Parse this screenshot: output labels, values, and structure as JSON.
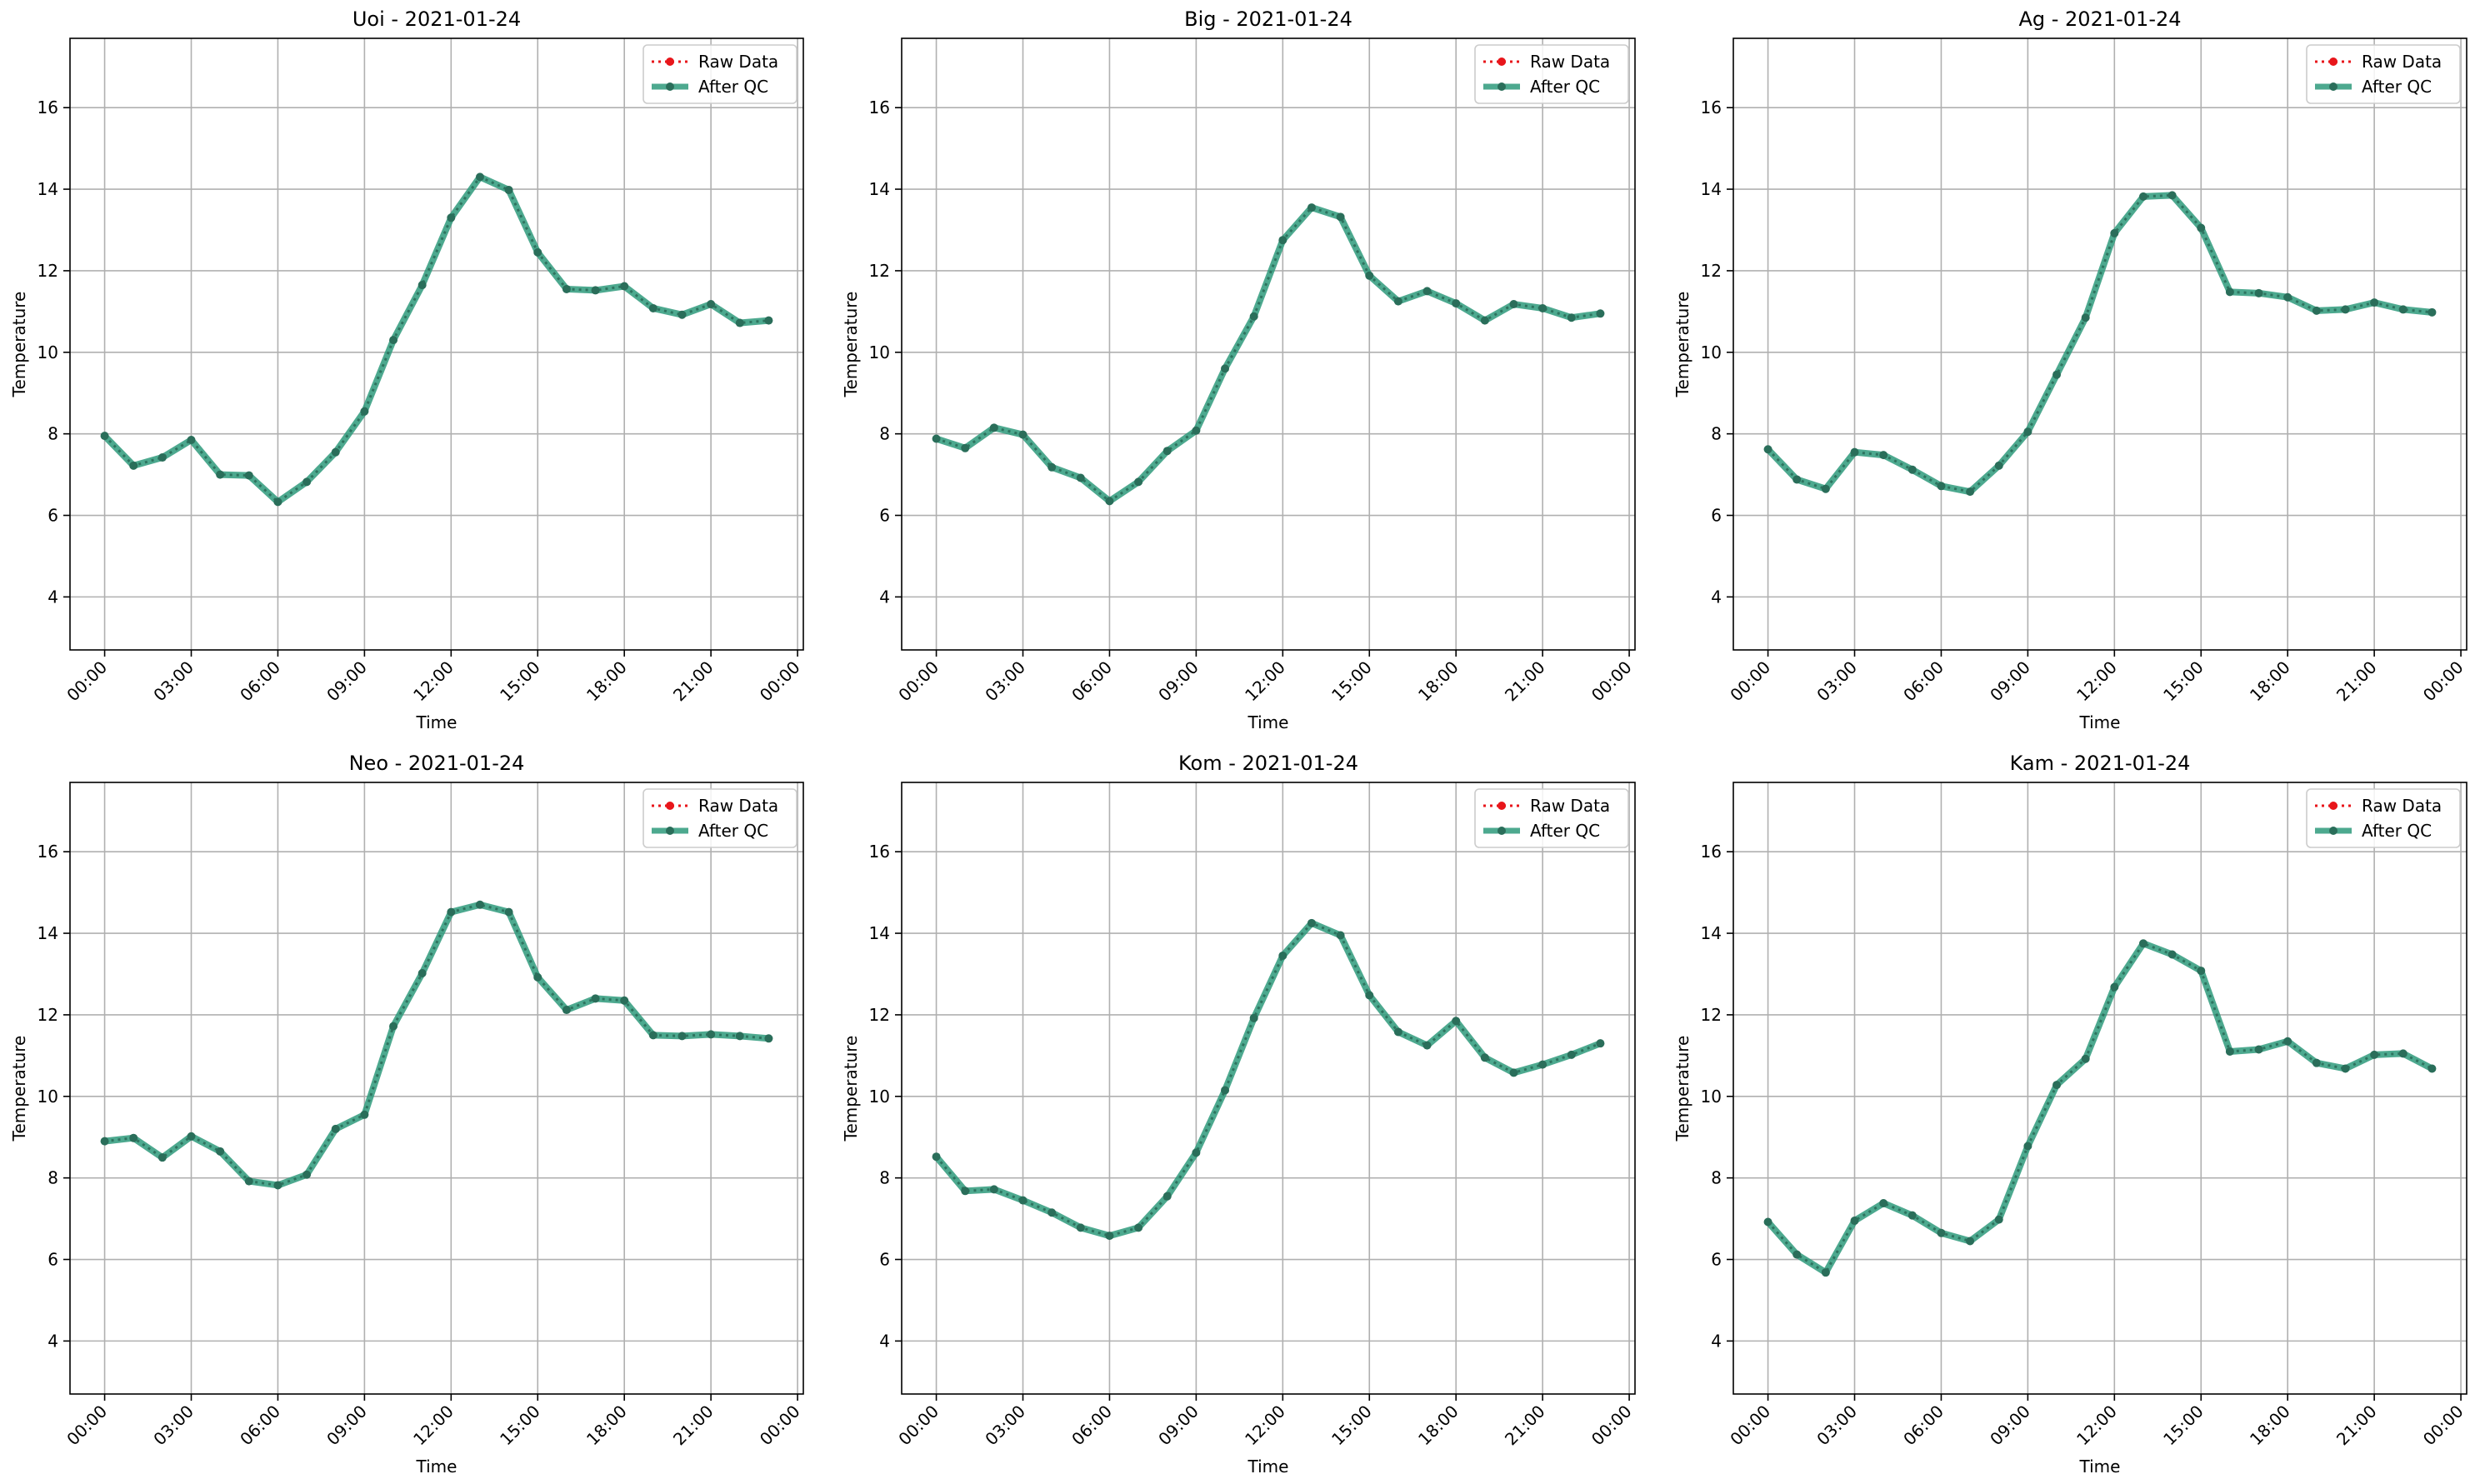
{
  "colors": {
    "raw": "#e8161b",
    "qc": "#2e9a7b",
    "qc_marker": "#2a6e5a",
    "grid": "#b0b0b0",
    "axes": "#000000",
    "legend_border": "#cccccc"
  },
  "chart_data": [
    {
      "type": "line",
      "title": "Uoi - 2021-01-24",
      "xlabel": "Time",
      "ylabel": "Temperature",
      "x": [
        "00:00",
        "01:00",
        "02:00",
        "03:00",
        "04:00",
        "05:00",
        "06:00",
        "07:00",
        "08:00",
        "09:00",
        "10:00",
        "11:00",
        "12:00",
        "13:00",
        "14:00",
        "15:00",
        "16:00",
        "17:00",
        "18:00",
        "19:00",
        "20:00",
        "21:00",
        "22:00",
        "23:00"
      ],
      "xticks": [
        "00:00",
        "03:00",
        "06:00",
        "09:00",
        "12:00",
        "15:00",
        "18:00",
        "21:00",
        "00:00"
      ],
      "yticks": [
        4,
        6,
        8,
        10,
        12,
        14,
        16
      ],
      "xlim": [
        -1.2,
        24.2
      ],
      "ylim": [
        2.7,
        17.7
      ],
      "grid": true,
      "legend": "upper-right",
      "series": [
        {
          "name": "Raw Data",
          "values": [
            7.95,
            7.22,
            7.42,
            7.85,
            7.0,
            6.98,
            6.33,
            6.82,
            7.55,
            8.55,
            10.3,
            11.65,
            13.3,
            14.3,
            13.98,
            12.45,
            11.55,
            11.52,
            11.62,
            11.08,
            10.92,
            11.18,
            10.72,
            10.78
          ]
        },
        {
          "name": "After QC",
          "values": [
            7.95,
            7.22,
            7.42,
            7.85,
            7.0,
            6.98,
            6.33,
            6.82,
            7.55,
            8.55,
            10.3,
            11.65,
            13.3,
            14.3,
            13.98,
            12.45,
            11.55,
            11.52,
            11.62,
            11.08,
            10.92,
            11.18,
            10.72,
            10.78
          ]
        }
      ]
    },
    {
      "type": "line",
      "title": "Big - 2021-01-24",
      "xlabel": "Time",
      "ylabel": "Temperature",
      "x": [
        "00:00",
        "01:00",
        "02:00",
        "03:00",
        "04:00",
        "05:00",
        "06:00",
        "07:00",
        "08:00",
        "09:00",
        "10:00",
        "11:00",
        "12:00",
        "13:00",
        "14:00",
        "15:00",
        "16:00",
        "17:00",
        "18:00",
        "19:00",
        "20:00",
        "21:00",
        "22:00",
        "23:00"
      ],
      "xticks": [
        "00:00",
        "03:00",
        "06:00",
        "09:00",
        "12:00",
        "15:00",
        "18:00",
        "21:00",
        "00:00"
      ],
      "yticks": [
        4,
        6,
        8,
        10,
        12,
        14,
        16
      ],
      "xlim": [
        -1.2,
        24.2
      ],
      "ylim": [
        2.7,
        17.7
      ],
      "grid": true,
      "legend": "upper-right",
      "series": [
        {
          "name": "Raw Data",
          "values": [
            7.88,
            7.65,
            8.15,
            7.98,
            7.18,
            6.92,
            6.35,
            6.82,
            7.58,
            8.08,
            9.6,
            10.88,
            12.75,
            13.55,
            13.32,
            11.88,
            11.25,
            11.5,
            11.2,
            10.78,
            11.18,
            11.08,
            10.85,
            10.95
          ]
        },
        {
          "name": "After QC",
          "values": [
            7.88,
            7.65,
            8.15,
            7.98,
            7.18,
            6.92,
            6.35,
            6.82,
            7.58,
            8.08,
            9.6,
            10.88,
            12.75,
            13.55,
            13.32,
            11.88,
            11.25,
            11.5,
            11.2,
            10.78,
            11.18,
            11.08,
            10.85,
            10.95
          ]
        }
      ]
    },
    {
      "type": "line",
      "title": "Ag - 2021-01-24",
      "xlabel": "Time",
      "ylabel": "Temperature",
      "x": [
        "00:00",
        "01:00",
        "02:00",
        "03:00",
        "04:00",
        "05:00",
        "06:00",
        "07:00",
        "08:00",
        "09:00",
        "10:00",
        "11:00",
        "12:00",
        "13:00",
        "14:00",
        "15:00",
        "16:00",
        "17:00",
        "18:00",
        "19:00",
        "20:00",
        "21:00",
        "22:00",
        "23:00"
      ],
      "xticks": [
        "00:00",
        "03:00",
        "06:00",
        "09:00",
        "12:00",
        "15:00",
        "18:00",
        "21:00",
        "00:00"
      ],
      "yticks": [
        4,
        6,
        8,
        10,
        12,
        14,
        16
      ],
      "xlim": [
        -1.2,
        24.2
      ],
      "ylim": [
        2.7,
        17.7
      ],
      "grid": true,
      "legend": "upper-right",
      "series": [
        {
          "name": "Raw Data",
          "values": [
            7.62,
            6.88,
            6.65,
            7.55,
            7.48,
            7.12,
            6.72,
            6.58,
            7.22,
            8.05,
            9.45,
            10.85,
            12.92,
            13.82,
            13.85,
            13.05,
            11.48,
            11.45,
            11.35,
            11.02,
            11.05,
            11.22,
            11.05,
            10.98
          ]
        },
        {
          "name": "After QC",
          "values": [
            7.62,
            6.88,
            6.65,
            7.55,
            7.48,
            7.12,
            6.72,
            6.58,
            7.22,
            8.05,
            9.45,
            10.85,
            12.92,
            13.82,
            13.85,
            13.05,
            11.48,
            11.45,
            11.35,
            11.02,
            11.05,
            11.22,
            11.05,
            10.98
          ]
        }
      ]
    },
    {
      "type": "line",
      "title": "Neo - 2021-01-24",
      "xlabel": "Time",
      "ylabel": "Temperature",
      "x": [
        "00:00",
        "01:00",
        "02:00",
        "03:00",
        "04:00",
        "05:00",
        "06:00",
        "07:00",
        "08:00",
        "09:00",
        "10:00",
        "11:00",
        "12:00",
        "13:00",
        "14:00",
        "15:00",
        "16:00",
        "17:00",
        "18:00",
        "19:00",
        "20:00",
        "21:00",
        "22:00",
        "23:00"
      ],
      "xticks": [
        "00:00",
        "03:00",
        "06:00",
        "09:00",
        "12:00",
        "15:00",
        "18:00",
        "21:00",
        "00:00"
      ],
      "yticks": [
        4,
        6,
        8,
        10,
        12,
        14,
        16
      ],
      "xlim": [
        -1.2,
        24.2
      ],
      "ylim": [
        2.7,
        17.7
      ],
      "grid": true,
      "legend": "upper-right",
      "series": [
        {
          "name": "Raw Data",
          "values": [
            8.9,
            8.98,
            8.5,
            9.02,
            8.65,
            7.92,
            7.82,
            8.08,
            9.2,
            9.55,
            11.72,
            13.02,
            14.52,
            14.7,
            14.52,
            12.92,
            12.12,
            12.4,
            12.35,
            11.5,
            11.48,
            11.52,
            11.48,
            11.42
          ]
        },
        {
          "name": "After QC",
          "values": [
            8.9,
            8.98,
            8.5,
            9.02,
            8.65,
            7.92,
            7.82,
            8.08,
            9.2,
            9.55,
            11.72,
            13.02,
            14.52,
            14.7,
            14.52,
            12.92,
            12.12,
            12.4,
            12.35,
            11.5,
            11.48,
            11.52,
            11.48,
            11.42
          ]
        }
      ]
    },
    {
      "type": "line",
      "title": "Kom - 2021-01-24",
      "xlabel": "Time",
      "ylabel": "Temperature",
      "x": [
        "00:00",
        "01:00",
        "02:00",
        "03:00",
        "04:00",
        "05:00",
        "06:00",
        "07:00",
        "08:00",
        "09:00",
        "10:00",
        "11:00",
        "12:00",
        "13:00",
        "14:00",
        "15:00",
        "16:00",
        "17:00",
        "18:00",
        "19:00",
        "20:00",
        "21:00",
        "22:00",
        "23:00"
      ],
      "xticks": [
        "00:00",
        "03:00",
        "06:00",
        "09:00",
        "12:00",
        "15:00",
        "18:00",
        "21:00",
        "00:00"
      ],
      "yticks": [
        4,
        6,
        8,
        10,
        12,
        14,
        16
      ],
      "xlim": [
        -1.2,
        24.2
      ],
      "ylim": [
        2.7,
        17.7
      ],
      "grid": true,
      "legend": "upper-right",
      "series": [
        {
          "name": "Raw Data",
          "values": [
            8.52,
            7.68,
            7.72,
            7.45,
            7.15,
            6.78,
            6.58,
            6.78,
            7.55,
            8.62,
            10.15,
            11.92,
            13.45,
            14.25,
            13.95,
            12.48,
            11.58,
            11.25,
            11.85,
            10.95,
            10.58,
            10.78,
            11.02,
            11.3
          ]
        },
        {
          "name": "After QC",
          "values": [
            8.52,
            7.68,
            7.72,
            7.45,
            7.15,
            6.78,
            6.58,
            6.78,
            7.55,
            8.62,
            10.15,
            11.92,
            13.45,
            14.25,
            13.95,
            12.48,
            11.58,
            11.25,
            11.85,
            10.95,
            10.58,
            10.78,
            11.02,
            11.3
          ]
        }
      ]
    },
    {
      "type": "line",
      "title": "Kam - 2021-01-24",
      "xlabel": "Time",
      "ylabel": "Temperature",
      "x": [
        "00:00",
        "01:00",
        "02:00",
        "03:00",
        "04:00",
        "05:00",
        "06:00",
        "07:00",
        "08:00",
        "09:00",
        "10:00",
        "11:00",
        "12:00",
        "13:00",
        "14:00",
        "15:00",
        "16:00",
        "17:00",
        "18:00",
        "19:00",
        "20:00",
        "21:00",
        "22:00",
        "23:00"
      ],
      "xticks": [
        "00:00",
        "03:00",
        "06:00",
        "09:00",
        "12:00",
        "15:00",
        "18:00",
        "21:00",
        "00:00"
      ],
      "yticks": [
        4,
        6,
        8,
        10,
        12,
        14,
        16
      ],
      "xlim": [
        -1.2,
        24.2
      ],
      "ylim": [
        2.7,
        17.7
      ],
      "grid": true,
      "legend": "upper-right",
      "series": [
        {
          "name": "Raw Data",
          "values": [
            6.92,
            6.12,
            5.68,
            6.95,
            7.38,
            7.08,
            6.65,
            6.45,
            6.98,
            8.78,
            10.28,
            10.92,
            12.68,
            13.75,
            13.48,
            13.08,
            11.1,
            11.15,
            11.35,
            10.82,
            10.68,
            11.02,
            11.05,
            10.68
          ]
        },
        {
          "name": "After QC",
          "values": [
            6.92,
            6.12,
            5.68,
            6.95,
            7.38,
            7.08,
            6.65,
            6.45,
            6.98,
            8.78,
            10.28,
            10.92,
            12.68,
            13.75,
            13.48,
            13.08,
            11.1,
            11.15,
            11.35,
            10.82,
            10.68,
            11.02,
            11.05,
            10.68
          ]
        }
      ]
    }
  ]
}
